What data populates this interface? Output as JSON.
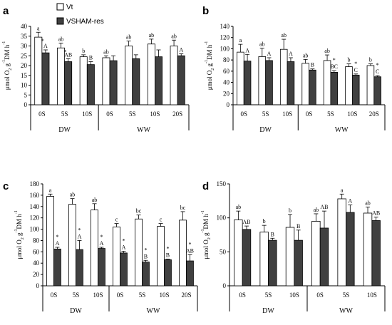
{
  "legend": [
    {
      "label": "Vt",
      "color": "#ffffff"
    },
    {
      "label": "VSHAM-res",
      "color": "#404040"
    }
  ],
  "chart_data": [
    {
      "type": "bar",
      "panel": "a",
      "ylabel_html": [
        "μmol O",
        "2",
        " g",
        "-1",
        "DM h",
        "-1"
      ],
      "ylim": [
        0,
        40
      ],
      "yticks": [
        0,
        5,
        10,
        15,
        20,
        25,
        30,
        35,
        40
      ],
      "categories": [
        "0S",
        "5S",
        "10S",
        "0S",
        "5S",
        "10S",
        "20S"
      ],
      "groups": [
        {
          "label": "DW",
          "count": 3
        },
        {
          "label": "WW",
          "count": 4
        }
      ],
      "series": [
        {
          "name": "Vt",
          "values": [
            34.5,
            29,
            24.5,
            24,
            30,
            31,
            30
          ],
          "err": [
            2.5,
            2.5,
            1,
            1,
            2.5,
            2.5,
            3
          ],
          "labels": [
            "a",
            "ab",
            "b",
            "ab",
            "ab",
            "ab",
            "ab"
          ],
          "stars": [
            "*",
            "*",
            "",
            "",
            "",
            "",
            ""
          ]
        },
        {
          "name": "VSHAM-res",
          "values": [
            26.5,
            22,
            20.5,
            22.5,
            23.5,
            24.5,
            25
          ],
          "err": [
            1.5,
            1.5,
            1.5,
            2.5,
            2,
            3.5,
            1
          ],
          "labels": [
            "A",
            "AB",
            "B",
            "",
            "",
            "",
            "A"
          ],
          "stars": [
            "",
            "",
            "",
            "",
            "",
            "",
            ""
          ]
        }
      ]
    },
    {
      "type": "bar",
      "panel": "b",
      "ylabel_html": [
        "μmol O",
        "2",
        " g",
        "-1",
        "DM h",
        "-1"
      ],
      "ylim": [
        0,
        140
      ],
      "yticks": [
        0,
        20,
        40,
        60,
        80,
        100,
        120,
        140
      ],
      "categories": [
        "0S",
        "5S",
        "10S",
        "0S",
        "5S",
        "10S",
        "20S"
      ],
      "groups": [
        {
          "label": "DW",
          "count": 3
        },
        {
          "label": "WW",
          "count": 4
        }
      ],
      "series": [
        {
          "name": "Vt",
          "values": [
            94,
            86,
            99,
            74,
            79,
            68,
            70
          ],
          "err": [
            14,
            15,
            18,
            7,
            10,
            5,
            3
          ],
          "labels": [
            "a",
            "ab",
            "ab",
            "ab",
            "ab",
            "b",
            "b"
          ],
          "stars": [
            "",
            "",
            "",
            "",
            "",
            "",
            ""
          ]
        },
        {
          "name": "VSHAM-res",
          "values": [
            78,
            79,
            77,
            62,
            58,
            53,
            50
          ],
          "err": [
            12,
            5,
            7,
            2,
            3,
            2,
            2
          ],
          "labels": [
            "A",
            "A",
            "A",
            "B",
            "BC",
            "C",
            "C"
          ],
          "stars": [
            "",
            "",
            "",
            "",
            "*",
            "*",
            "*"
          ]
        }
      ]
    },
    {
      "type": "bar",
      "panel": "c",
      "ylabel_html": [
        "μmol O",
        "2",
        " g",
        "-1",
        "DM h",
        "-1"
      ],
      "ylim": [
        0,
        180
      ],
      "yticks": [
        0,
        20,
        40,
        60,
        80,
        100,
        120,
        140,
        160,
        180
      ],
      "categories": [
        "0S",
        "5S",
        "10S",
        "0S",
        "5S",
        "10S",
        "20S"
      ],
      "groups": [
        {
          "label": "DW",
          "count": 3
        },
        {
          "label": "WW",
          "count": 4
        }
      ],
      "series": [
        {
          "name": "Vt",
          "values": [
            158,
            144,
            134,
            104,
            118,
            105,
            116
          ],
          "err": [
            4,
            10,
            11,
            6,
            7,
            5,
            15
          ],
          "labels": [
            "a",
            "ab",
            "ab",
            "c",
            "bc",
            "c",
            "bc"
          ],
          "stars": [
            "",
            "",
            "",
            "",
            "",
            "",
            ""
          ]
        },
        {
          "name": "VSHAM-res",
          "values": [
            65,
            64,
            66,
            58,
            42,
            46,
            44
          ],
          "err": [
            3,
            16,
            2,
            3,
            3,
            1,
            11
          ],
          "labels": [
            "A",
            "A",
            "A",
            "A",
            "B",
            "B",
            "AB"
          ],
          "stars": [
            "*",
            "*",
            "*",
            "*",
            "*",
            "*",
            "*"
          ]
        }
      ]
    },
    {
      "type": "bar",
      "panel": "d",
      "ylabel_html": [
        "μmol O",
        "2",
        " g",
        "-1",
        "DM h",
        "-1"
      ],
      "ylim": [
        0,
        150
      ],
      "yticks": [
        0,
        50,
        100,
        150
      ],
      "categories": [
        "0S",
        "5S",
        "10S",
        "0S",
        "5S",
        "10S"
      ],
      "groups": [
        {
          "label": "DW",
          "count": 3
        },
        {
          "label": "WW",
          "count": 3
        }
      ],
      "series": [
        {
          "name": "Vt",
          "values": [
            97,
            79,
            86,
            95,
            128,
            107
          ],
          "err": [
            13,
            10,
            19,
            11,
            7,
            9
          ],
          "labels": [
            "ab",
            "b",
            "b",
            "ab",
            "a",
            "ab"
          ],
          "stars": [
            "",
            "",
            "",
            "",
            "",
            ""
          ]
        },
        {
          "name": "VSHAM-res",
          "values": [
            83,
            67,
            67,
            85,
            108,
            96
          ],
          "err": [
            5,
            3,
            15,
            25,
            11,
            5
          ],
          "labels": [
            "AB",
            "B",
            "B",
            "AB",
            "A",
            "AB"
          ],
          "stars": [
            "",
            "",
            "",
            "",
            "",
            ""
          ]
        }
      ]
    }
  ]
}
